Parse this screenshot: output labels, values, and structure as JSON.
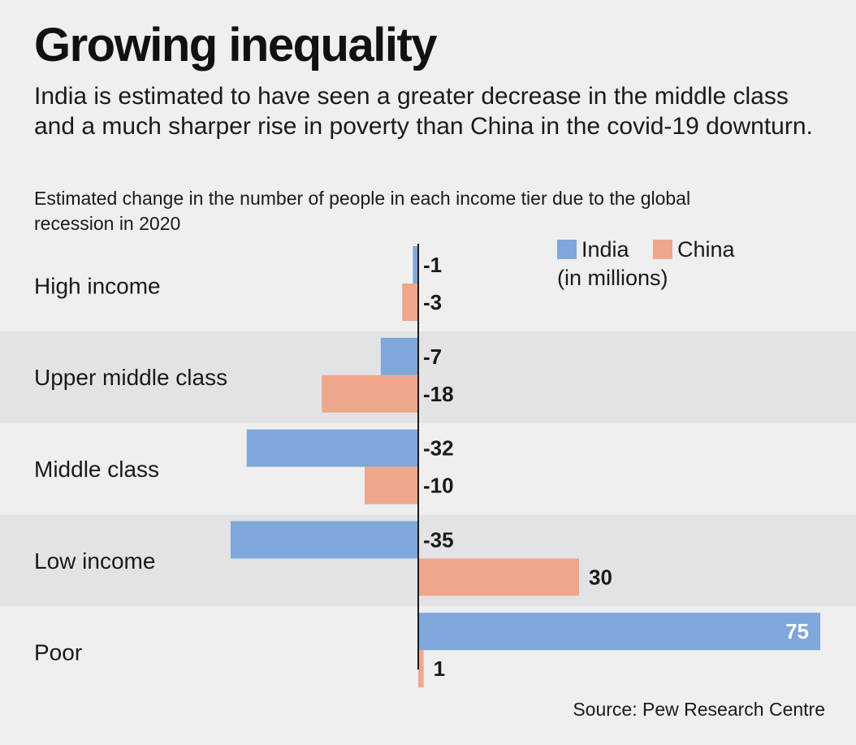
{
  "title": "Growing inequality",
  "subtitle": "India is estimated to have seen a greater decrease in the middle class and a much sharper rise in poverty than China in the covid-19 downturn.",
  "caption": "Estimated change in the number of people in each income tier due to the global recession in 2020",
  "source": "Source: Pew Research Centre",
  "legend": {
    "unit": "(in millions)"
  },
  "colors": {
    "India": "#7fa7da",
    "China": "#efa78b",
    "band": "#e3e3e5",
    "axis": "#1a1a1a"
  },
  "chart_data": {
    "type": "bar",
    "orientation": "horizontal",
    "title": "Growing inequality",
    "categories": [
      "High income",
      "Upper middle class",
      "Middle class",
      "Low income",
      "Poor"
    ],
    "series": [
      {
        "name": "India",
        "values": [
          -1,
          -7,
          -32,
          -35,
          75
        ]
      },
      {
        "name": "China",
        "values": [
          -3,
          -18,
          -10,
          30,
          1
        ]
      }
    ],
    "unit": "in millions",
    "xlim": [
      -40,
      80
    ],
    "grid": false,
    "legend_position": "top-right"
  }
}
